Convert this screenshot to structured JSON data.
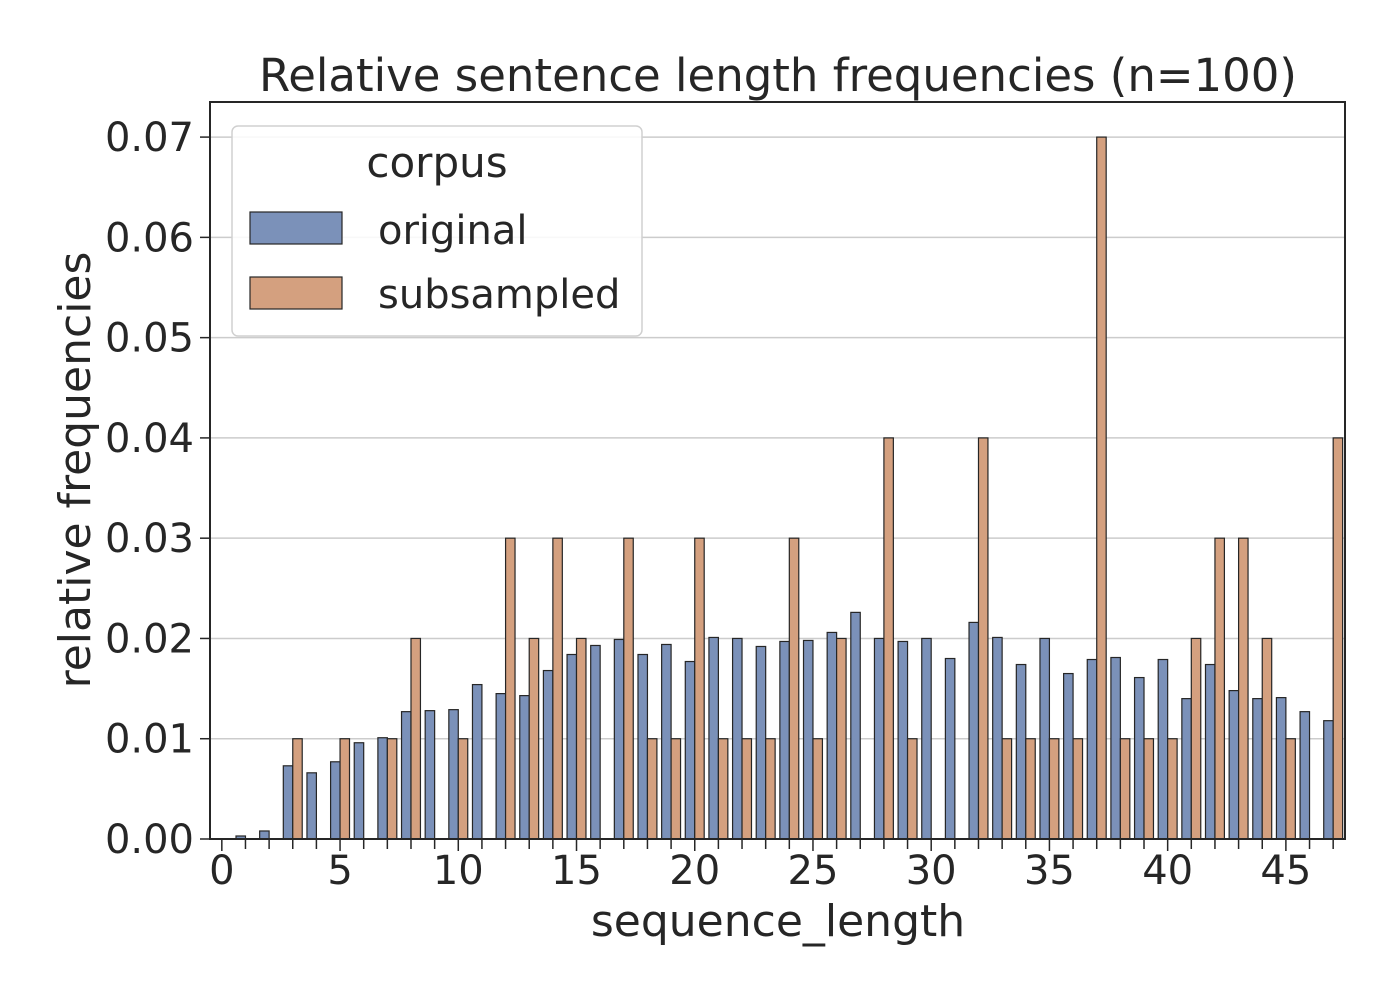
{
  "chart_data": {
    "type": "bar",
    "title": "Relative sentence length frequencies (n=100)",
    "xlabel": "sequence_length",
    "ylabel": "relative frequencies",
    "xlim": [
      -0.5,
      47.5
    ],
    "ylim": [
      0,
      0.0735
    ],
    "grid": "horizontal",
    "legend_position": "top-left",
    "legend_title": "corpus",
    "x_ticks": [
      0,
      5,
      10,
      15,
      20,
      25,
      30,
      35,
      40,
      45
    ],
    "x_tick_labels": [
      "0",
      "5",
      "10",
      "15",
      "20",
      "25",
      "30",
      "35",
      "40",
      "45"
    ],
    "y_ticks": [
      0,
      0.01,
      0.02,
      0.03,
      0.04,
      0.05,
      0.06,
      0.07
    ],
    "y_tick_labels": [
      "0.00",
      "0.01",
      "0.02",
      "0.03",
      "0.04",
      "0.05",
      "0.06",
      "0.07"
    ],
    "categories": [
      0,
      1,
      2,
      3,
      4,
      5,
      6,
      7,
      8,
      9,
      10,
      11,
      12,
      13,
      14,
      15,
      16,
      17,
      18,
      19,
      20,
      21,
      22,
      23,
      24,
      25,
      26,
      27,
      28,
      29,
      30,
      31,
      32,
      33,
      34,
      35,
      36,
      37,
      38,
      39,
      40,
      41,
      42,
      43,
      44,
      45,
      46,
      47
    ],
    "series": [
      {
        "name": "original",
        "color": "#7b91b9",
        "values": [
          0,
          0.0003,
          0.0008,
          0.0073,
          0.0066,
          0.0077,
          0.0096,
          0.0101,
          0.0127,
          0.0128,
          0.0129,
          0.0154,
          0.0145,
          0.0143,
          0.0168,
          0.0184,
          0.0193,
          0.0199,
          0.0184,
          0.0194,
          0.0177,
          0.0201,
          0.02,
          0.0192,
          0.0197,
          0.0198,
          0.0206,
          0.0226,
          0.02,
          0.0197,
          0.02,
          0.018,
          0.0216,
          0.0201,
          0.0174,
          0.02,
          0.0165,
          0.0179,
          0.0181,
          0.0161,
          0.0179,
          0.014,
          0.0174,
          0.0148,
          0.014,
          0.0141,
          0.0127,
          0.0118
        ]
      },
      {
        "name": "subsampled",
        "color": "#d4a07f",
        "values": [
          0,
          0,
          0,
          0.01,
          0,
          0.01,
          0,
          0.01,
          0.02,
          0,
          0.01,
          0,
          0.03,
          0.02,
          0.03,
          0.02,
          0,
          0.03,
          0.01,
          0.01,
          0.03,
          0.01,
          0.01,
          0.01,
          0.03,
          0.01,
          0.02,
          0,
          0.04,
          0.01,
          0,
          0,
          0.04,
          0.01,
          0.01,
          0.01,
          0.01,
          0.07,
          0.01,
          0.01,
          0.01,
          0.02,
          0.03,
          0.03,
          0.02,
          0.01,
          0,
          0.04
        ]
      }
    ]
  }
}
